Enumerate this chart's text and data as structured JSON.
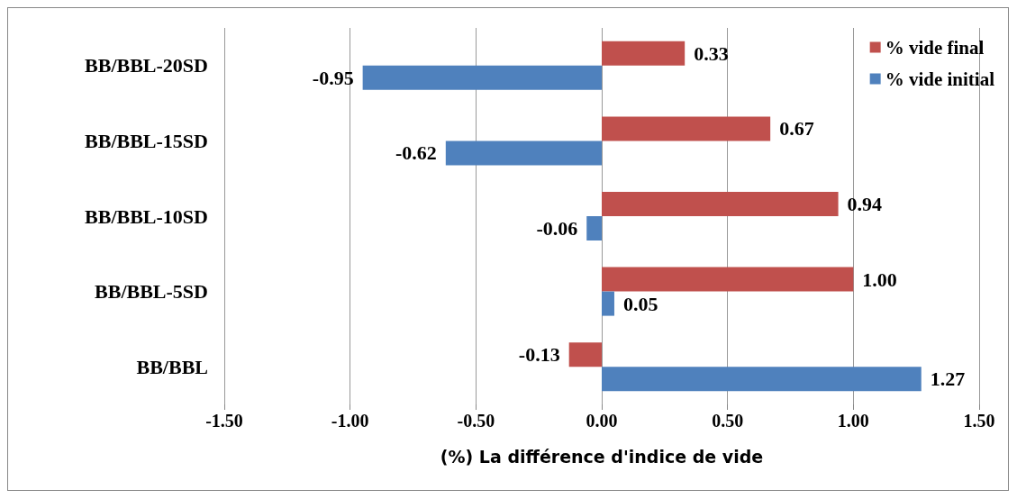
{
  "chart_data": {
    "type": "bar",
    "orientation": "horizontal",
    "xlabel": "(%) La différence d'indice de vide",
    "categories": [
      "BB/BBL-20SD",
      "BB/BBL-15SD",
      "BB/BBL-10SD",
      "BB/BBL-5SD",
      "BB/BBL"
    ],
    "series": [
      {
        "name": "% vide final",
        "color": "#c0504d",
        "values": [
          0.33,
          0.67,
          0.94,
          1.0,
          -0.13
        ],
        "value_labels": [
          "0.33",
          "0.67",
          "0.94",
          "1.00",
          "-0.13"
        ]
      },
      {
        "name": "% vide initial",
        "color": "#4f81bd",
        "values": [
          -0.95,
          -0.62,
          -0.06,
          0.05,
          1.27
        ],
        "value_labels": [
          "-0.95",
          "-0.62",
          "-0.06",
          "0.05",
          "1.27"
        ]
      }
    ],
    "xlim": [
      -1.5,
      1.5
    ],
    "xticks": [
      {
        "value": -1.5,
        "label": "-1.50"
      },
      {
        "value": -1,
        "label": "-1.00"
      },
      {
        "value": -0.5,
        "label": "-0.50"
      },
      {
        "value": 0,
        "label": "0.00"
      },
      {
        "value": 0.5,
        "label": "0.50"
      },
      {
        "value": 1,
        "label": "1.00"
      },
      {
        "value": 1.5,
        "label": "1.50"
      }
    ],
    "grid": "x",
    "legend": "top right"
  }
}
